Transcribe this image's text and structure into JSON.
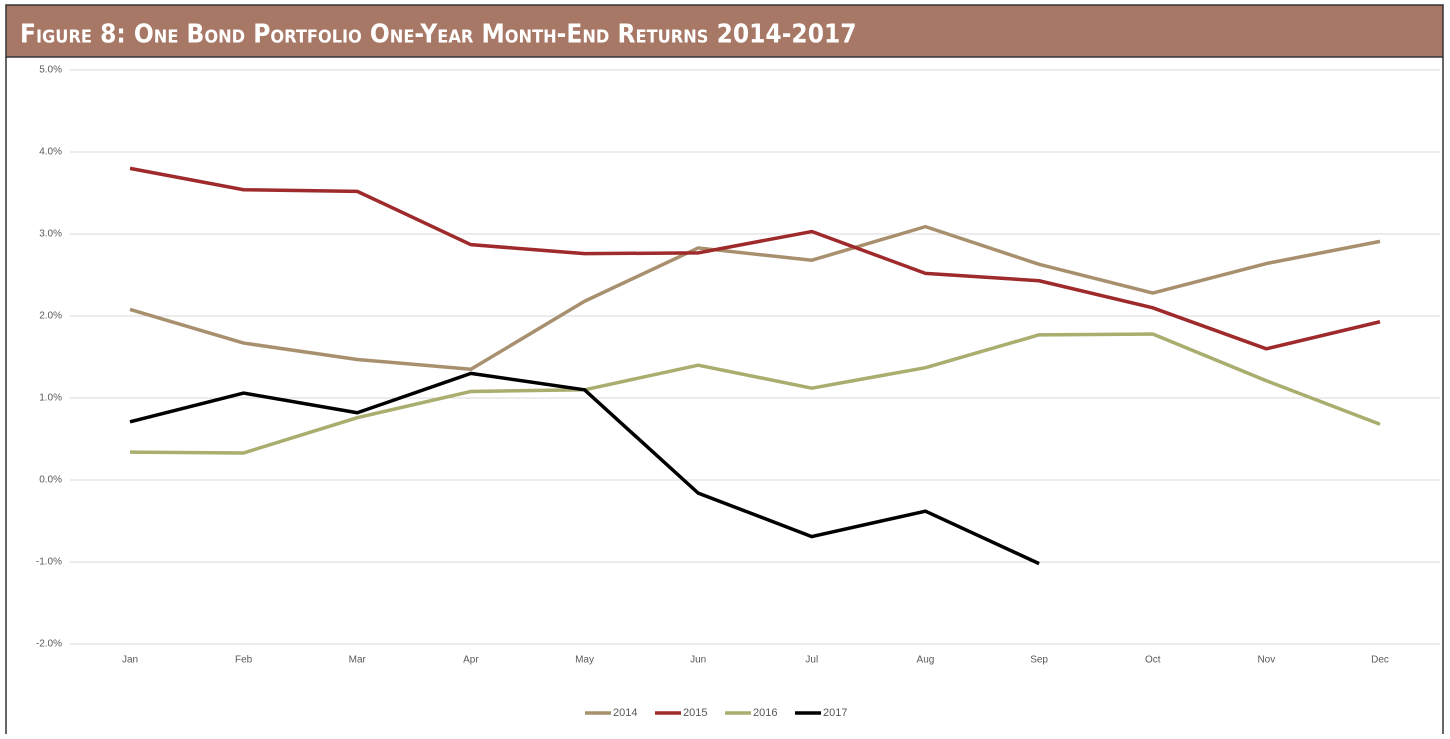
{
  "chart_data": {
    "type": "line",
    "title": "Figure 8: One Bond Portfolio One-Year Month-End Returns 2014-2017",
    "categories": [
      "Jan",
      "Feb",
      "Mar",
      "Apr",
      "May",
      "Jun",
      "Jul",
      "Aug",
      "Sep",
      "Oct",
      "Nov",
      "Dec"
    ],
    "series": [
      {
        "name": "2014",
        "color": "#a8906f",
        "values": [
          2.08,
          1.67,
          1.47,
          1.35,
          2.18,
          2.83,
          2.68,
          3.09,
          2.63,
          2.28,
          2.64,
          2.91
        ]
      },
      {
        "name": "2015",
        "color": "#9e2a2b",
        "values": [
          3.8,
          3.54,
          3.52,
          2.87,
          2.76,
          2.77,
          3.03,
          2.52,
          2.43,
          2.1,
          1.6,
          1.93
        ]
      },
      {
        "name": "2016",
        "color": "#a9ad6e",
        "values": [
          0.34,
          0.33,
          0.76,
          1.08,
          1.1,
          1.4,
          1.12,
          1.37,
          1.77,
          1.78,
          1.21,
          0.68
        ]
      },
      {
        "name": "2017",
        "color": "#000000",
        "values": [
          0.71,
          1.06,
          0.82,
          1.3,
          1.1,
          -0.16,
          -0.69,
          -0.38,
          -1.02,
          null,
          null,
          null
        ]
      }
    ],
    "ylim": [
      -2,
      5
    ],
    "yticks": [
      {
        "value": -2,
        "label": "-2.0%"
      },
      {
        "value": -1,
        "label": "-1.0%"
      },
      {
        "value": 0,
        "label": "0.0%"
      },
      {
        "value": 1,
        "label": "1.0%"
      },
      {
        "value": 2,
        "label": "2.0%"
      },
      {
        "value": 3,
        "label": "3.0%"
      },
      {
        "value": 4,
        "label": "4.0%"
      },
      {
        "value": 5,
        "label": "5.0%"
      }
    ],
    "grid": true,
    "legend": "bottom"
  }
}
